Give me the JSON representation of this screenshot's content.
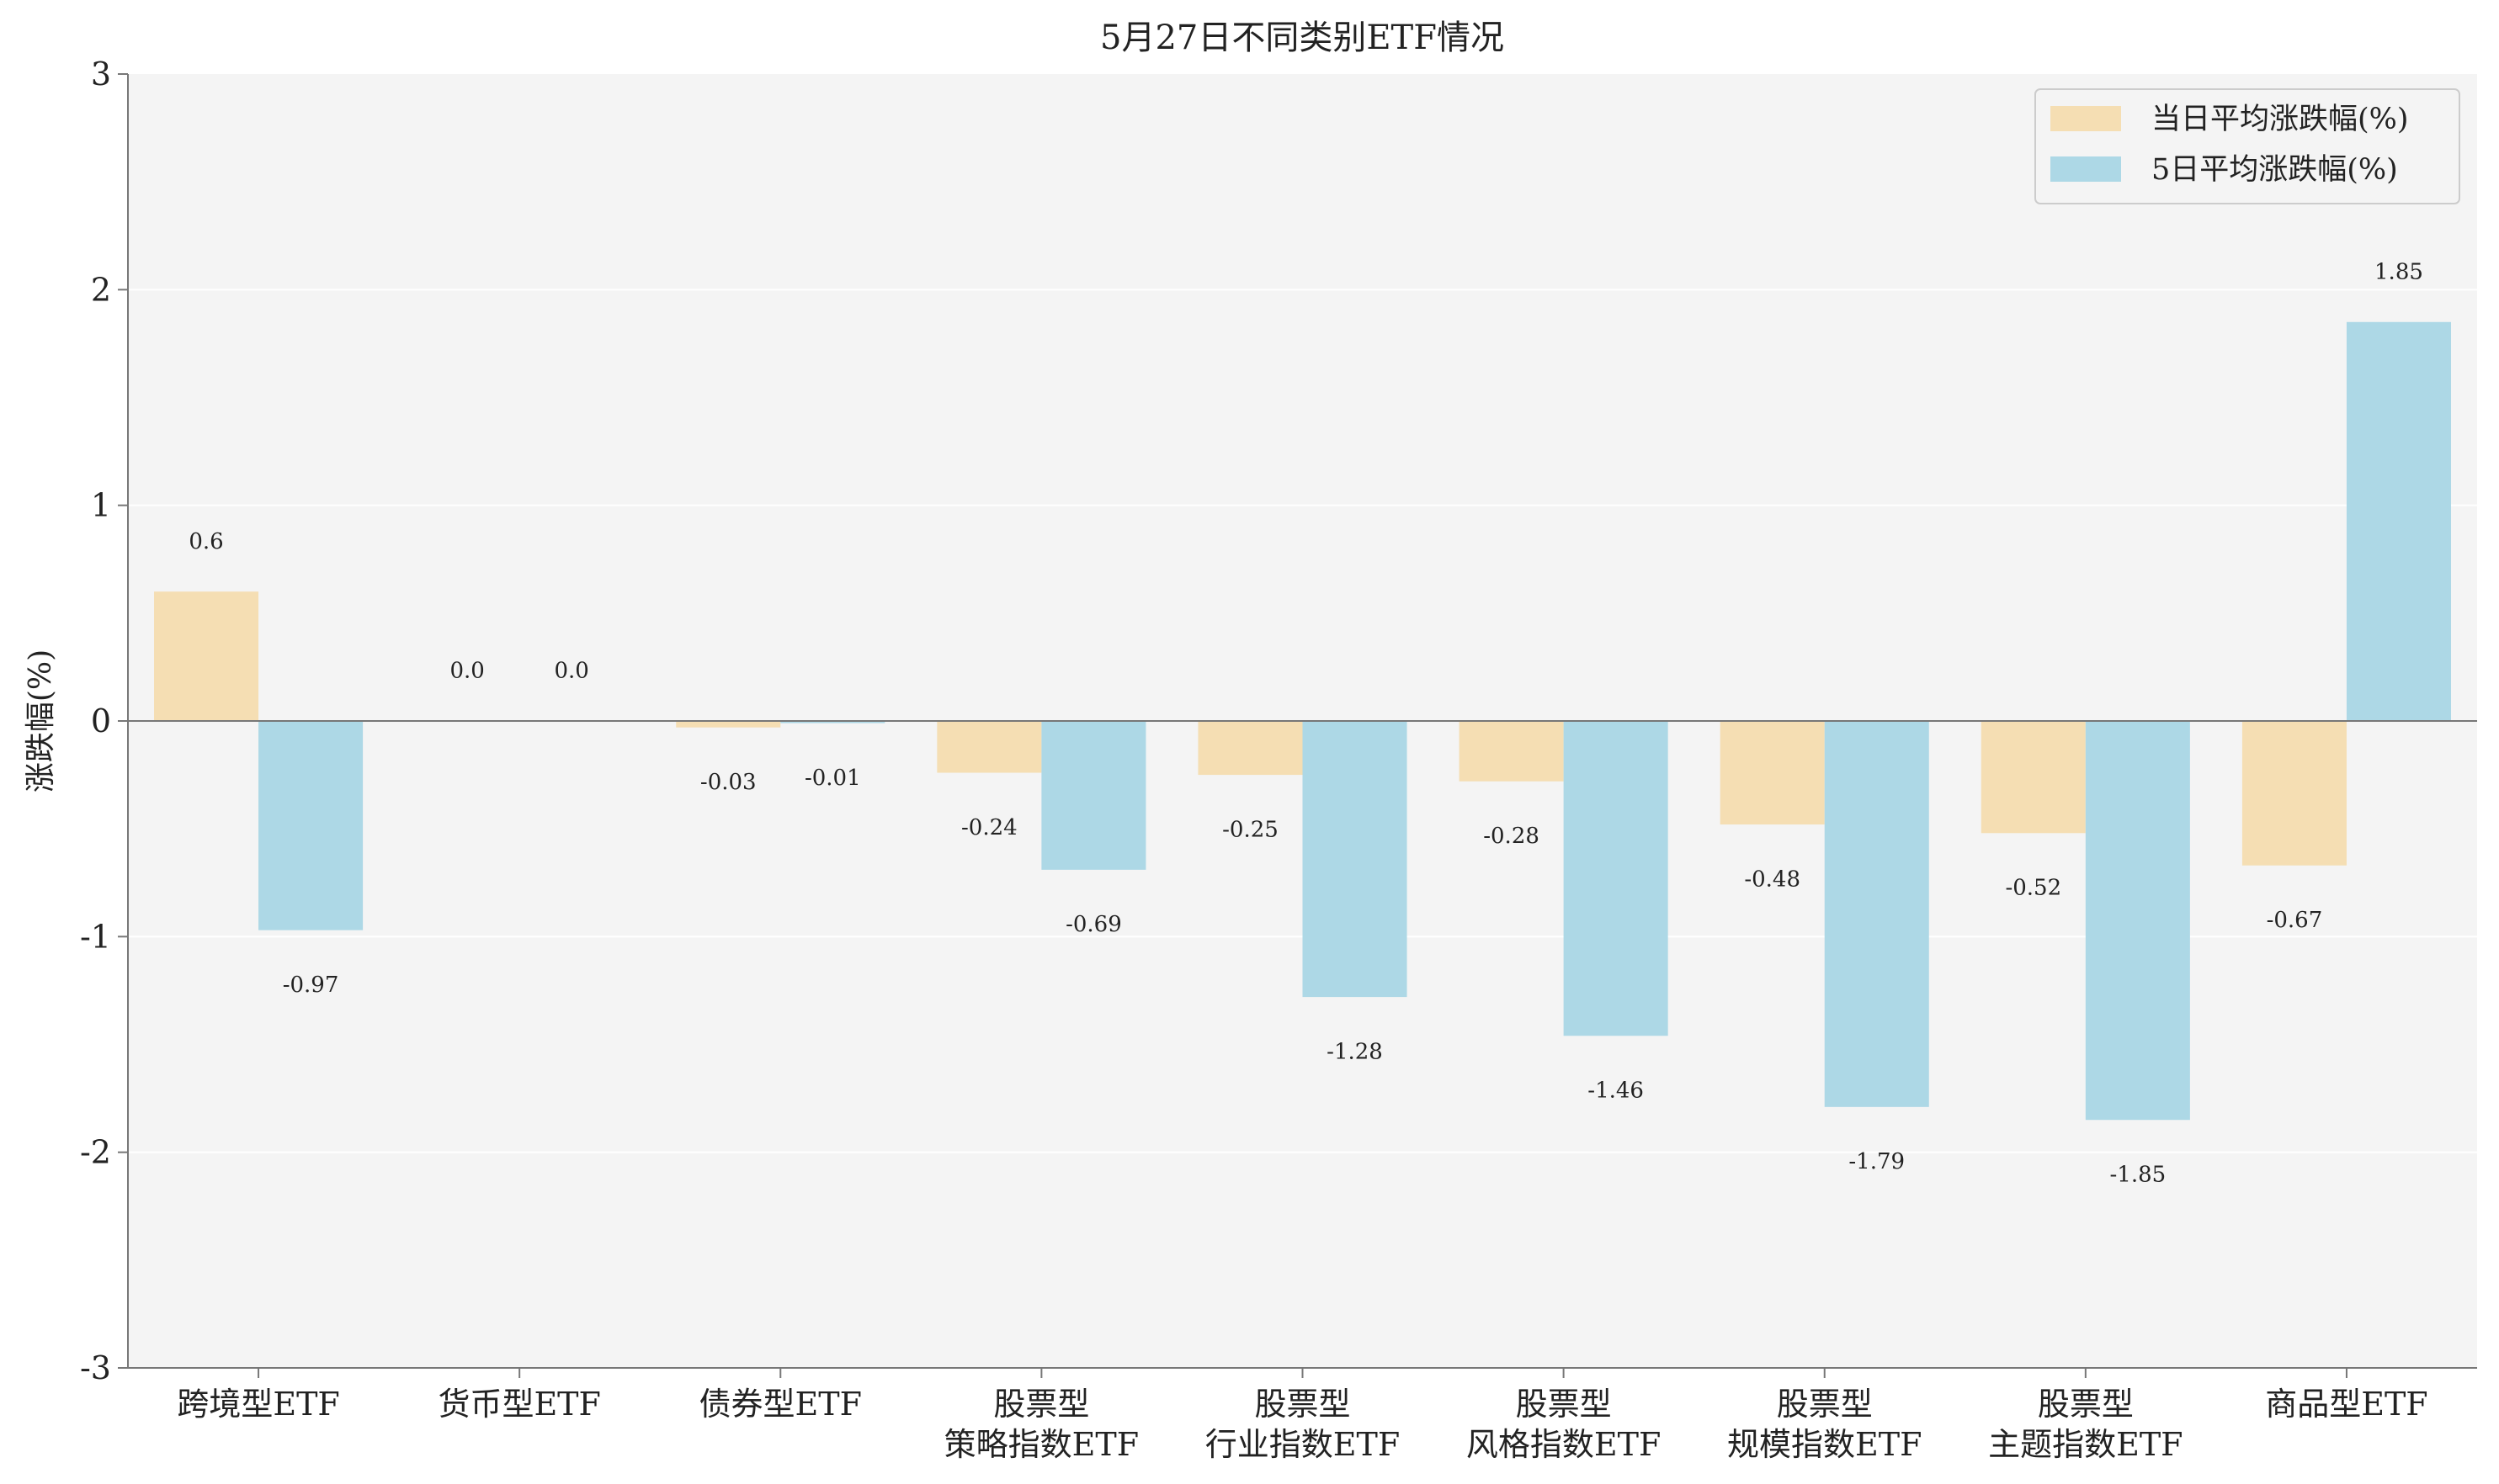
{
  "chart_data": {
    "type": "bar",
    "title": "5月27日不同类别ETF情况",
    "xlabel": "",
    "ylabel": "涨跌幅(%)",
    "ylim": [
      -3,
      3
    ],
    "yticks": [
      -3,
      -2,
      -1,
      0,
      1,
      2,
      3
    ],
    "grid": true,
    "legend_position": "top-right",
    "categories": [
      [
        "跨境型ETF"
      ],
      [
        "货币型ETF"
      ],
      [
        "债券型ETF"
      ],
      [
        "股票型",
        "策略指数ETF"
      ],
      [
        "股票型",
        "行业指数ETF"
      ],
      [
        "股票型",
        "风格指数ETF"
      ],
      [
        "股票型",
        "规模指数ETF"
      ],
      [
        "股票型",
        "主题指数ETF"
      ],
      [
        "商品型ETF"
      ]
    ],
    "series": [
      {
        "name": "当日平均涨跌幅(%)",
        "color": "#f5deb3",
        "values": [
          0.6,
          0.0,
          -0.03,
          -0.24,
          -0.25,
          -0.28,
          -0.48,
          -0.52,
          -0.67
        ],
        "labels": [
          "0.6",
          "0.0",
          "-0.03",
          "-0.24",
          "-0.25",
          "-0.28",
          "-0.48",
          "-0.52",
          "-0.67"
        ]
      },
      {
        "name": "5日平均涨跌幅(%)",
        "color": "#add8e6",
        "values": [
          -0.97,
          0.0,
          -0.01,
          -0.69,
          -1.28,
          -1.46,
          -1.79,
          -1.85,
          1.85
        ],
        "labels": [
          "-0.97",
          "0.0",
          "-0.01",
          "-0.69",
          "-1.28",
          "-1.46",
          "-1.79",
          "-1.85",
          "1.85"
        ]
      }
    ],
    "colors": {
      "plot_background": "#f4f4f4",
      "grid": "#ffffff",
      "axis": "#777777",
      "zero_line": "#777777"
    }
  }
}
